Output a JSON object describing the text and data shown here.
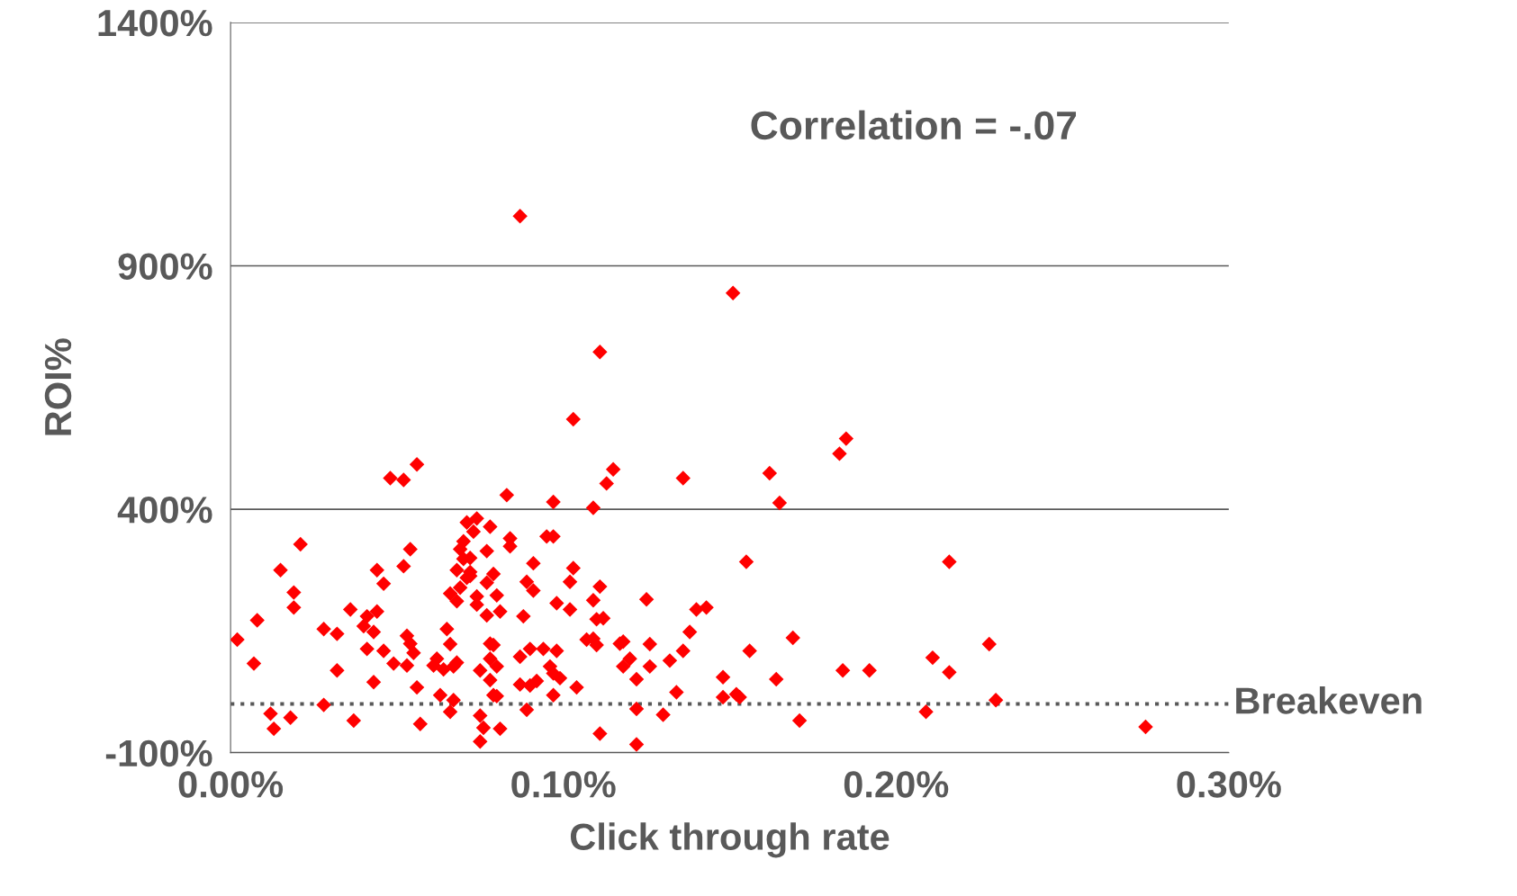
{
  "chart_data": {
    "type": "scatter",
    "xlabel": "Click through rate",
    "ylabel": "ROI%",
    "annotations": [
      "Correlation = -.07"
    ],
    "xlim": [
      0,
      0.3
    ],
    "xticks": [
      {
        "value": 0,
        "label": "0.00%"
      },
      {
        "value": 0.1,
        "label": "0.10%"
      },
      {
        "value": 0.2,
        "label": "0.20%"
      },
      {
        "value": 0.3,
        "label": "0.30%"
      }
    ],
    "ylim": [
      -100,
      1400
    ],
    "yticks": [
      {
        "value": -100,
        "label": "-100%"
      },
      {
        "value": 400,
        "label": "400%"
      },
      {
        "value": 900,
        "label": "900%"
      },
      {
        "value": 1400,
        "label": "1400%"
      }
    ],
    "grid": "y",
    "marker": "diamond",
    "legend": false,
    "ref_lines": [
      {
        "axis": "y",
        "value": 0,
        "label": "Breakeven",
        "color": "#595959",
        "line_style": "dotted"
      }
    ],
    "series": [
      {
        "color": "#ff0000",
        "x": [
          0.002,
          0.007,
          0.008,
          0.012,
          0.013,
          0.015,
          0.018,
          0.019,
          0.019,
          0.021,
          0.028,
          0.028,
          0.032,
          0.032,
          0.036,
          0.037,
          0.041,
          0.04,
          0.041,
          0.043,
          0.044,
          0.044,
          0.043,
          0.046,
          0.046,
          0.048,
          0.049,
          0.052,
          0.052,
          0.053,
          0.054,
          0.053,
          0.054,
          0.055,
          0.056,
          0.056,
          0.057,
          0.061,
          0.062,
          0.063,
          0.064,
          0.065,
          0.066,
          0.066,
          0.066,
          0.067,
          0.067,
          0.068,
          0.068,
          0.068,
          0.069,
          0.069,
          0.07,
          0.07,
          0.071,
          0.071,
          0.072,
          0.072,
          0.072,
          0.073,
          0.074,
          0.074,
          0.074,
          0.075,
          0.075,
          0.075,
          0.076,
          0.077,
          0.077,
          0.077,
          0.078,
          0.078,
          0.078,
          0.078,
          0.079,
          0.079,
          0.079,
          0.08,
          0.08,
          0.08,
          0.081,
          0.081,
          0.083,
          0.084,
          0.084,
          0.087,
          0.087,
          0.087,
          0.088,
          0.089,
          0.089,
          0.09,
          0.09,
          0.091,
          0.091,
          0.092,
          0.094,
          0.095,
          0.096,
          0.097,
          0.097,
          0.097,
          0.097,
          0.098,
          0.098,
          0.099,
          0.102,
          0.102,
          0.103,
          0.103,
          0.104,
          0.107,
          0.109,
          0.109,
          0.109,
          0.11,
          0.11,
          0.111,
          0.111,
          0.111,
          0.112,
          0.113,
          0.115,
          0.117,
          0.118,
          0.118,
          0.12,
          0.122,
          0.122,
          0.122,
          0.125,
          0.126,
          0.126,
          0.13,
          0.132,
          0.134,
          0.136,
          0.136,
          0.138,
          0.14,
          0.143,
          0.148,
          0.148,
          0.151,
          0.152,
          0.153,
          0.155,
          0.156,
          0.162,
          0.164,
          0.165,
          0.169,
          0.171,
          0.183,
          0.184,
          0.185,
          0.192,
          0.209,
          0.211,
          0.216,
          0.216,
          0.228,
          0.23,
          0.275
        ],
        "values": [
          132,
          83,
          172,
          -20,
          -51,
          275,
          -28,
          229,
          198,
          328,
          154,
          -2,
          144,
          69,
          194,
          -34,
          180,
          160,
          113,
          45,
          275,
          190,
          148,
          247,
          109,
          464,
          83,
          460,
          283,
          79,
          318,
          140,
          124,
          105,
          492,
          34,
          -41,
          79,
          93,
          18,
          71,
          154,
          123,
          -16,
          227,
          8,
          77,
          211,
          275,
          85,
          239,
          318,
          298,
          334,
          259,
          373,
          271,
          263,
          300,
          354,
          381,
          204,
          221,
          69,
          -77,
          -24,
          -49,
          314,
          182,
          249,
          364,
          93,
          124,
          49,
          267,
          18,
          121,
          77,
          223,
          16,
          190,
          -51,
          429,
          340,
          324,
          1002,
          40,
          97,
          180,
          -12,
          251,
          113,
          38,
          289,
          233,
          47,
          113,
          344,
          77,
          63,
          415,
          344,
          18,
          109,
          207,
          53,
          194,
          251,
          279,
          585,
          34,
          132,
          213,
          403,
          134,
          174,
          121,
          -61,
          241,
          723,
          176,
          453,
          482,
          124,
          128,
          77,
          93,
          51,
          -10,
          -83,
          215,
          123,
          77,
          -22,
          89,
          24,
          464,
          109,
          148,
          194,
          198,
          55,
          14,
          844,
          20,
          14,
          292,
          109,
          474,
          51,
          413,
          136,
          -34,
          514,
          69,
          545,
          69,
          -16,
          95,
          65,
          292,
          123,
          8,
          -47
        ]
      }
    ]
  }
}
